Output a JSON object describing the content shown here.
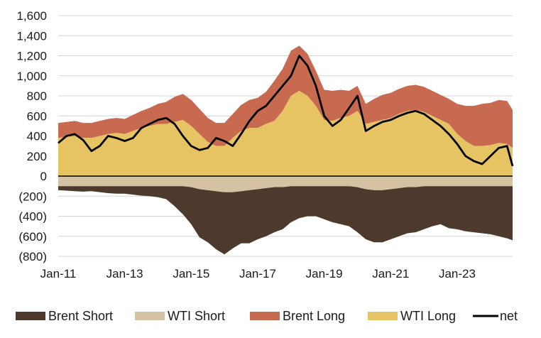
{
  "chart_data": {
    "type": "area",
    "title": "",
    "xlabel": "",
    "ylabel": "",
    "ylim": [
      -800,
      1600
    ],
    "y_ticks": [
      -800,
      -600,
      -400,
      -200,
      0,
      200,
      400,
      600,
      800,
      1000,
      1200,
      1400,
      1600
    ],
    "y_tick_labels": [
      "(800)",
      "(600)",
      "(400)",
      "(200)",
      "0",
      "200",
      "400",
      "600",
      "800",
      "1,000",
      "1,200",
      "1,400",
      "1,600"
    ],
    "x_ticks": [
      "2011-01",
      "2013-01",
      "2015-01",
      "2017-01",
      "2019-01",
      "2021-01",
      "2023-01"
    ],
    "x_tick_labels": [
      "Jan-11",
      "Jan-13",
      "Jan-15",
      "Jan-17",
      "Jan-19",
      "Jan-21",
      "Jan-23"
    ],
    "x_range": [
      "2011-01",
      "2024-09"
    ],
    "grid": "horizontal",
    "legend_position": "bottom",
    "x": [
      "2011-01",
      "2011-04",
      "2011-07",
      "2011-10",
      "2012-01",
      "2012-04",
      "2012-07",
      "2012-10",
      "2013-01",
      "2013-04",
      "2013-07",
      "2013-10",
      "2014-01",
      "2014-04",
      "2014-07",
      "2014-10",
      "2015-01",
      "2015-04",
      "2015-07",
      "2015-10",
      "2016-01",
      "2016-04",
      "2016-07",
      "2016-10",
      "2017-01",
      "2017-04",
      "2017-07",
      "2017-10",
      "2018-01",
      "2018-04",
      "2018-07",
      "2018-10",
      "2019-01",
      "2019-04",
      "2019-07",
      "2019-10",
      "2020-01",
      "2020-04",
      "2020-07",
      "2020-10",
      "2021-01",
      "2021-04",
      "2021-07",
      "2021-10",
      "2022-01",
      "2022-04",
      "2022-07",
      "2022-10",
      "2023-01",
      "2023-04",
      "2023-07",
      "2023-10",
      "2024-01",
      "2024-04",
      "2024-07",
      "2024-09"
    ],
    "series": [
      {
        "name": "Brent Short",
        "color": "#4e3a2c",
        "values": [
          -40,
          -45,
          -50,
          -55,
          -50,
          -60,
          -70,
          -75,
          -75,
          -85,
          -95,
          -100,
          -110,
          -130,
          -200,
          -280,
          -370,
          -480,
          -520,
          -580,
          -620,
          -560,
          -520,
          -530,
          -500,
          -480,
          -450,
          -420,
          -360,
          -320,
          -300,
          -300,
          -330,
          -360,
          -380,
          -400,
          -450,
          -500,
          -520,
          -520,
          -500,
          -480,
          -460,
          -450,
          -430,
          -400,
          -380,
          -420,
          -430,
          -450,
          -460,
          -470,
          -480,
          -500,
          -520,
          -540
        ]
      },
      {
        "name": "WTI Short",
        "color": "#d5c2a2",
        "values": [
          -100,
          -100,
          -100,
          -100,
          -100,
          -100,
          -100,
          -100,
          -100,
          -100,
          -100,
          -100,
          -100,
          -100,
          -100,
          -100,
          -110,
          -130,
          -140,
          -150,
          -160,
          -160,
          -150,
          -140,
          -130,
          -120,
          -110,
          -110,
          -100,
          -100,
          -100,
          -100,
          -100,
          -100,
          -100,
          -100,
          -110,
          -130,
          -140,
          -140,
          -130,
          -120,
          -110,
          -110,
          -100,
          -100,
          -100,
          -100,
          -100,
          -100,
          -100,
          -100,
          -100,
          -100,
          -100,
          -100
        ]
      },
      {
        "name": "Brent Long",
        "color": "#c86a50",
        "values": [
          150,
          150,
          150,
          150,
          150,
          150,
          150,
          150,
          150,
          160,
          170,
          180,
          200,
          220,
          250,
          260,
          260,
          250,
          240,
          230,
          230,
          240,
          260,
          280,
          300,
          320,
          400,
          420,
          450,
          450,
          420,
          350,
          300,
          300,
          280,
          250,
          250,
          200,
          230,
          250,
          250,
          250,
          250,
          250,
          250,
          250,
          250,
          250,
          300,
          350,
          400,
          420,
          420,
          430,
          430,
          380
        ]
      },
      {
        "name": "WTI Long",
        "color": "#e6c463",
        "values": [
          380,
          390,
          400,
          380,
          380,
          400,
          420,
          430,
          420,
          450,
          480,
          500,
          520,
          520,
          540,
          560,
          500,
          420,
          340,
          300,
          300,
          380,
          450,
          480,
          480,
          520,
          550,
          650,
          800,
          850,
          800,
          700,
          560,
          550,
          580,
          600,
          650,
          520,
          540,
          560,
          580,
          620,
          650,
          660,
          640,
          600,
          560,
          520,
          420,
          350,
          300,
          300,
          310,
          330,
          320,
          280
        ]
      },
      {
        "name": "net",
        "color": "#000000",
        "values": [
          330,
          400,
          420,
          360,
          250,
          300,
          400,
          380,
          350,
          380,
          480,
          520,
          560,
          580,
          520,
          400,
          300,
          260,
          280,
          380,
          350,
          300,
          420,
          550,
          650,
          700,
          800,
          900,
          1000,
          1200,
          1100,
          900,
          600,
          500,
          560,
          680,
          800,
          450,
          500,
          540,
          560,
          600,
          630,
          650,
          620,
          560,
          500,
          420,
          320,
          200,
          150,
          120,
          200,
          280,
          300,
          100
        ]
      }
    ]
  }
}
